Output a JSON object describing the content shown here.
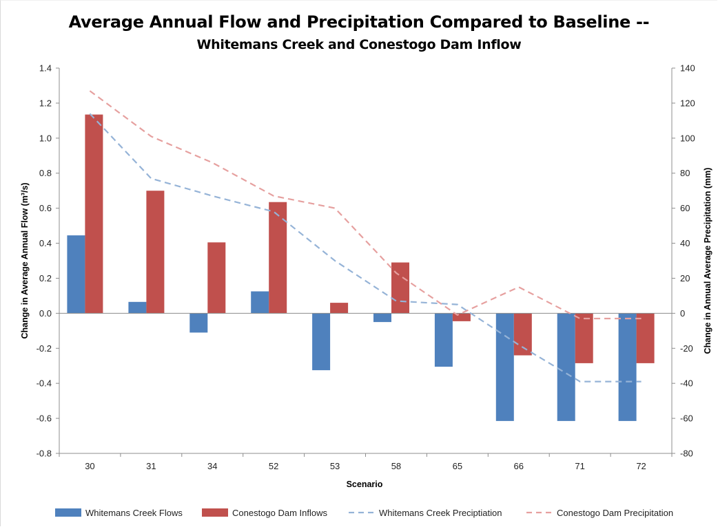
{
  "chart_data": {
    "type": "bar",
    "title": "Average Annual Flow and Precipitation Compared to Baseline --",
    "subtitle": "Whitemans Creek and Conestogo Dam Inflow",
    "xlabel": "Scenario",
    "ylabel": "Change in Average Annual Flow (m³/s)",
    "y2label": "Change in Annual Average Precipitation (mm)",
    "categories": [
      "30",
      "31",
      "34",
      "52",
      "53",
      "58",
      "65",
      "66",
      "71",
      "72"
    ],
    "ylim": [
      -0.8,
      1.4
    ],
    "y2lim": [
      -80,
      140
    ],
    "yticks": [
      "1.4",
      "1.2",
      "1.0",
      "0.8",
      "0.6",
      "0.4",
      "0.2",
      "0.0",
      "-0.2",
      "-0.4",
      "-0.6",
      "-0.8"
    ],
    "y2ticks": [
      "140",
      "120",
      "100",
      "80",
      "60",
      "40",
      "20",
      "0",
      "-20",
      "-40",
      "-60",
      "-80"
    ],
    "grid": false,
    "legend_position": "bottom",
    "series": [
      {
        "name": "Whitemans Creek Flows",
        "kind": "bar",
        "axis": "left",
        "color": "#4f81bd",
        "values": [
          0.445,
          0.065,
          -0.11,
          0.125,
          -0.325,
          -0.05,
          -0.305,
          -0.615,
          -0.615,
          -0.615
        ]
      },
      {
        "name": "Conestogo Dam Inflows",
        "kind": "bar",
        "axis": "left",
        "color": "#c0504d",
        "values": [
          1.135,
          0.7,
          0.405,
          0.635,
          0.06,
          0.29,
          -0.045,
          -0.24,
          -0.285,
          -0.285
        ]
      },
      {
        "name": "Whitemans Creek Preciptiation",
        "kind": "dashed-line",
        "axis": "right",
        "color": "#95b3d7",
        "values": [
          114,
          77,
          67,
          58,
          30,
          7,
          5,
          -18,
          -39,
          -39
        ]
      },
      {
        "name": "Conestogo Dam Precipitation",
        "kind": "dashed-line",
        "axis": "right",
        "color": "#e6a09f",
        "values": [
          127,
          101,
          86,
          67,
          60,
          23,
          -1,
          15,
          -3,
          -3
        ]
      }
    ]
  }
}
